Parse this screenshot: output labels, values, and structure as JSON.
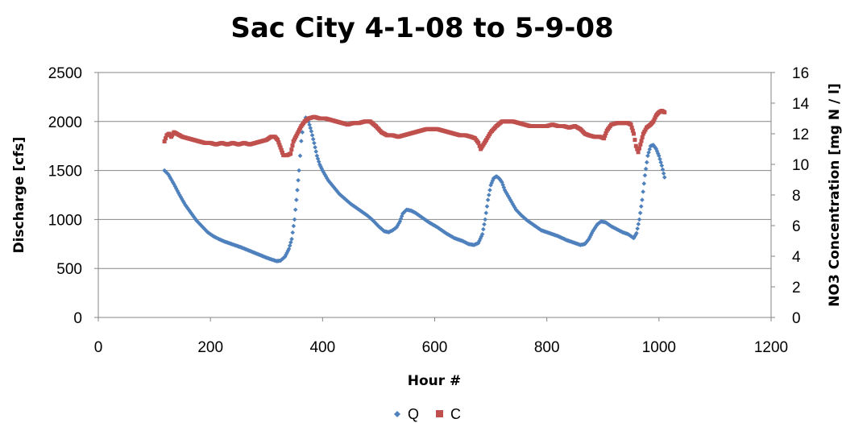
{
  "chart_data": {
    "type": "scatter",
    "title": "Sac City 4-1-08 to 5-9-08",
    "xlabel": "Hour #",
    "ylabel": "Discharge [cfs]",
    "y2label": "NO3 Concentration [mg N / l]",
    "xlim": [
      0,
      1200
    ],
    "ylim": [
      0,
      2500
    ],
    "y2lim": [
      0,
      16
    ],
    "xticks": [
      0,
      200,
      400,
      600,
      800,
      1000,
      1200
    ],
    "yticks": [
      0,
      500,
      1000,
      1500,
      2000,
      2500
    ],
    "y2ticks": [
      0,
      2,
      4,
      6,
      8,
      10,
      12,
      14,
      16
    ],
    "grid": "horizontal",
    "legend_position": "bottom",
    "colors": {
      "Q": "#4f81bd",
      "C": "#c0504d"
    },
    "series": [
      {
        "name": "Q",
        "axis": "left",
        "marker": "diamond",
        "points": [
          [
            118,
            1500
          ],
          [
            125,
            1460
          ],
          [
            135,
            1360
          ],
          [
            145,
            1250
          ],
          [
            155,
            1150
          ],
          [
            165,
            1070
          ],
          [
            175,
            990
          ],
          [
            185,
            930
          ],
          [
            195,
            870
          ],
          [
            205,
            830
          ],
          [
            215,
            800
          ],
          [
            225,
            775
          ],
          [
            240,
            745
          ],
          [
            255,
            715
          ],
          [
            270,
            680
          ],
          [
            285,
            645
          ],
          [
            300,
            610
          ],
          [
            310,
            590
          ],
          [
            318,
            575
          ],
          [
            325,
            580
          ],
          [
            333,
            620
          ],
          [
            340,
            700
          ],
          [
            345,
            800
          ],
          [
            350,
            1000
          ],
          [
            355,
            1300
          ],
          [
            358,
            1500
          ],
          [
            362,
            1800
          ],
          [
            366,
            1980
          ],
          [
            370,
            2040
          ],
          [
            375,
            2000
          ],
          [
            380,
            1900
          ],
          [
            385,
            1780
          ],
          [
            390,
            1650
          ],
          [
            395,
            1560
          ],
          [
            400,
            1500
          ],
          [
            410,
            1400
          ],
          [
            420,
            1330
          ],
          [
            430,
            1260
          ],
          [
            440,
            1210
          ],
          [
            450,
            1160
          ],
          [
            460,
            1120
          ],
          [
            470,
            1080
          ],
          [
            480,
            1040
          ],
          [
            490,
            990
          ],
          [
            500,
            930
          ],
          [
            510,
            880
          ],
          [
            518,
            870
          ],
          [
            525,
            890
          ],
          [
            532,
            920
          ],
          [
            538,
            980
          ],
          [
            543,
            1060
          ],
          [
            550,
            1100
          ],
          [
            558,
            1090
          ],
          [
            565,
            1070
          ],
          [
            575,
            1030
          ],
          [
            590,
            970
          ],
          [
            605,
            920
          ],
          [
            620,
            860
          ],
          [
            635,
            810
          ],
          [
            650,
            780
          ],
          [
            660,
            750
          ],
          [
            670,
            740
          ],
          [
            678,
            760
          ],
          [
            685,
            850
          ],
          [
            690,
            1000
          ],
          [
            695,
            1200
          ],
          [
            700,
            1350
          ],
          [
            705,
            1420
          ],
          [
            710,
            1440
          ],
          [
            715,
            1420
          ],
          [
            720,
            1380
          ],
          [
            725,
            1300
          ],
          [
            735,
            1200
          ],
          [
            745,
            1100
          ],
          [
            755,
            1040
          ],
          [
            765,
            990
          ],
          [
            775,
            950
          ],
          [
            790,
            890
          ],
          [
            805,
            860
          ],
          [
            820,
            830
          ],
          [
            835,
            790
          ],
          [
            850,
            760
          ],
          [
            860,
            740
          ],
          [
            868,
            750
          ],
          [
            875,
            800
          ],
          [
            882,
            880
          ],
          [
            890,
            950
          ],
          [
            897,
            980
          ],
          [
            905,
            970
          ],
          [
            915,
            930
          ],
          [
            925,
            900
          ],
          [
            935,
            870
          ],
          [
            945,
            850
          ],
          [
            955,
            810
          ],
          [
            960,
            860
          ],
          [
            965,
            1000
          ],
          [
            970,
            1200
          ],
          [
            975,
            1450
          ],
          [
            980,
            1650
          ],
          [
            985,
            1750
          ],
          [
            990,
            1760
          ],
          [
            995,
            1720
          ],
          [
            1000,
            1650
          ],
          [
            1005,
            1550
          ],
          [
            1010,
            1430
          ]
        ]
      },
      {
        "name": "C",
        "axis": "right",
        "marker": "square",
        "points": [
          [
            118,
            11.5
          ],
          [
            122,
            11.9
          ],
          [
            126,
            12.0
          ],
          [
            130,
            11.8
          ],
          [
            135,
            12.1
          ],
          [
            140,
            12.0
          ],
          [
            150,
            11.8
          ],
          [
            160,
            11.7
          ],
          [
            170,
            11.6
          ],
          [
            180,
            11.5
          ],
          [
            190,
            11.4
          ],
          [
            200,
            11.4
          ],
          [
            210,
            11.3
          ],
          [
            220,
            11.4
          ],
          [
            230,
            11.3
          ],
          [
            240,
            11.4
          ],
          [
            250,
            11.3
          ],
          [
            260,
            11.4
          ],
          [
            270,
            11.3
          ],
          [
            280,
            11.4
          ],
          [
            290,
            11.5
          ],
          [
            300,
            11.6
          ],
          [
            308,
            11.8
          ],
          [
            315,
            11.8
          ],
          [
            320,
            11.6
          ],
          [
            325,
            11.1
          ],
          [
            330,
            10.6
          ],
          [
            337,
            10.6
          ],
          [
            343,
            10.7
          ],
          [
            348,
            11.5
          ],
          [
            355,
            12.0
          ],
          [
            362,
            12.5
          ],
          [
            368,
            12.8
          ],
          [
            375,
            13.0
          ],
          [
            385,
            13.1
          ],
          [
            395,
            13.0
          ],
          [
            405,
            13.0
          ],
          [
            415,
            12.9
          ],
          [
            425,
            12.8
          ],
          [
            435,
            12.7
          ],
          [
            445,
            12.6
          ],
          [
            455,
            12.7
          ],
          [
            465,
            12.7
          ],
          [
            475,
            12.8
          ],
          [
            485,
            12.8
          ],
          [
            495,
            12.5
          ],
          [
            505,
            12.1
          ],
          [
            515,
            11.9
          ],
          [
            525,
            11.9
          ],
          [
            535,
            11.8
          ],
          [
            545,
            11.9
          ],
          [
            555,
            12.0
          ],
          [
            565,
            12.1
          ],
          [
            575,
            12.2
          ],
          [
            585,
            12.3
          ],
          [
            595,
            12.3
          ],
          [
            605,
            12.3
          ],
          [
            615,
            12.2
          ],
          [
            625,
            12.1
          ],
          [
            635,
            12.0
          ],
          [
            645,
            11.9
          ],
          [
            655,
            11.9
          ],
          [
            665,
            11.8
          ],
          [
            672,
            11.7
          ],
          [
            678,
            11.4
          ],
          [
            682,
            11.0
          ],
          [
            687,
            11.3
          ],
          [
            692,
            11.6
          ],
          [
            700,
            12.1
          ],
          [
            710,
            12.5
          ],
          [
            720,
            12.8
          ],
          [
            730,
            12.8
          ],
          [
            740,
            12.8
          ],
          [
            750,
            12.7
          ],
          [
            760,
            12.6
          ],
          [
            770,
            12.5
          ],
          [
            780,
            12.5
          ],
          [
            790,
            12.5
          ],
          [
            800,
            12.5
          ],
          [
            810,
            12.6
          ],
          [
            820,
            12.5
          ],
          [
            830,
            12.5
          ],
          [
            840,
            12.4
          ],
          [
            850,
            12.5
          ],
          [
            860,
            12.3
          ],
          [
            868,
            12.0
          ],
          [
            875,
            11.9
          ],
          [
            885,
            11.8
          ],
          [
            895,
            11.8
          ],
          [
            902,
            11.7
          ],
          [
            907,
            12.2
          ],
          [
            915,
            12.6
          ],
          [
            925,
            12.7
          ],
          [
            935,
            12.7
          ],
          [
            945,
            12.7
          ],
          [
            950,
            12.6
          ],
          [
            955,
            12.0
          ],
          [
            959,
            11.2
          ],
          [
            963,
            10.8
          ],
          [
            967,
            11.3
          ],
          [
            972,
            12.0
          ],
          [
            978,
            12.4
          ],
          [
            985,
            12.6
          ],
          [
            990,
            12.8
          ],
          [
            995,
            13.2
          ],
          [
            1000,
            13.4
          ],
          [
            1005,
            13.5
          ],
          [
            1010,
            13.4
          ]
        ]
      }
    ]
  }
}
